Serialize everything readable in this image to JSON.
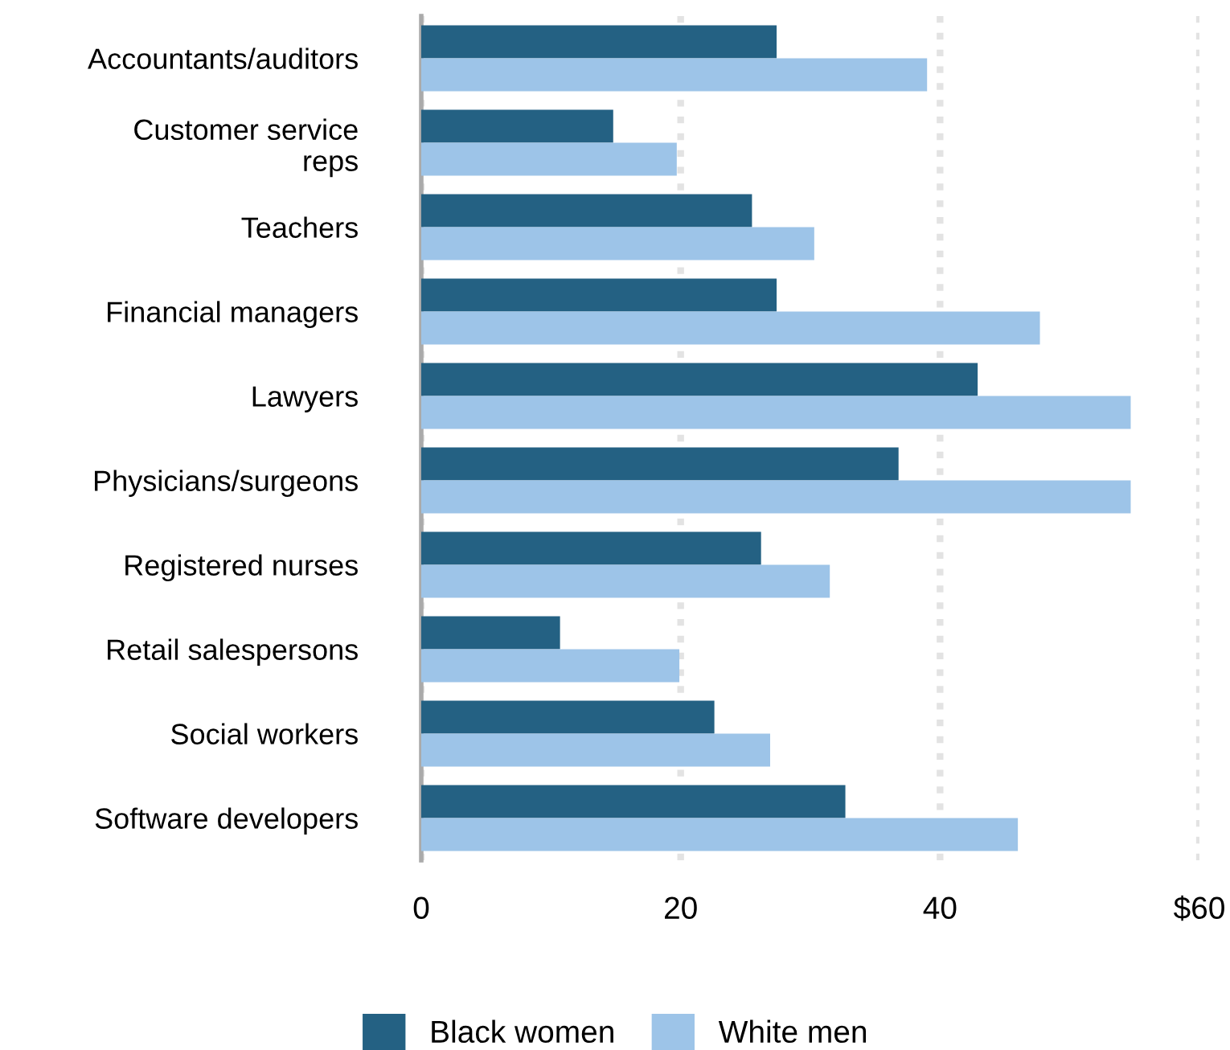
{
  "chart_data": {
    "type": "bar",
    "orientation": "horizontal",
    "categories": [
      "Accountants/auditors",
      "Customer service\nreps",
      "Teachers",
      "Financial managers",
      "Lawyers",
      "Physicians/surgeons",
      "Registered nurses",
      "Retail salespersons",
      "Social workers",
      "Software developers"
    ],
    "series": [
      {
        "name": "Black women",
        "color": "#246183",
        "values": [
          27.4,
          14.8,
          25.5,
          27.4,
          42.9,
          36.8,
          26.2,
          10.7,
          22.6,
          32.7
        ]
      },
      {
        "name": "White men",
        "color": "#9dc4e8",
        "values": [
          39.0,
          19.7,
          30.3,
          47.7,
          54.7,
          54.7,
          31.5,
          19.9,
          26.9,
          46.0
        ]
      }
    ],
    "xlim": [
      0,
      60
    ],
    "xticks": [
      0,
      20,
      40,
      {
        "value": 60,
        "label": "$60"
      }
    ],
    "grid": "x",
    "legend": "bottom"
  }
}
